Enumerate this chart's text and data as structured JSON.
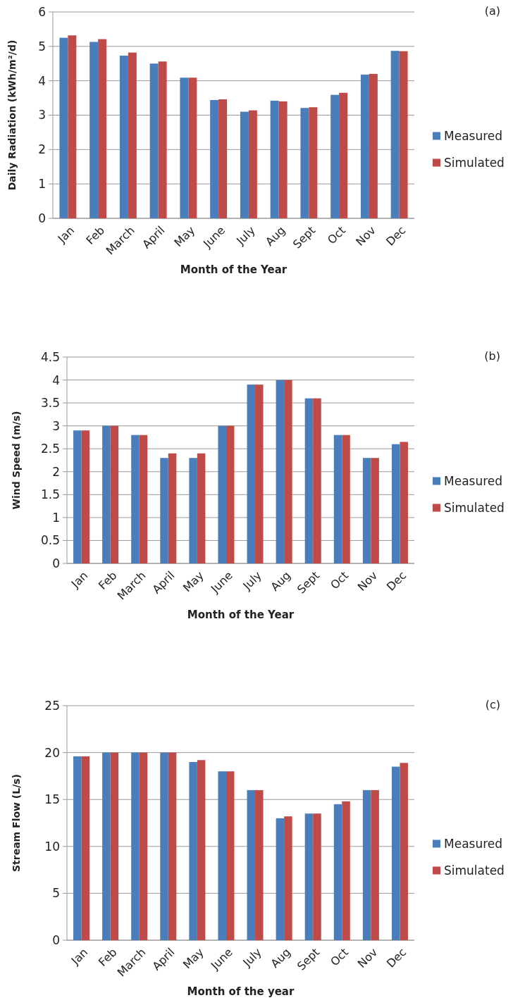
{
  "chart_data": [
    {
      "type": "bar",
      "annotations": [
        "(a)"
      ],
      "xlabel": "Month of the Year",
      "ylabel": "Daily Radiation (kWh/m²/d)",
      "categories": [
        "Jan",
        "Feb",
        "March",
        "April",
        "May",
        "June",
        "July",
        "Aug",
        "Sept",
        "Oct",
        "Nov",
        "Dec"
      ],
      "series": [
        {
          "name": "Measured",
          "color": "#4a7ebb",
          "values": [
            5.25,
            5.13,
            4.73,
            4.5,
            4.09,
            3.44,
            3.1,
            3.42,
            3.21,
            3.59,
            4.18,
            4.87
          ]
        },
        {
          "name": "Simulated",
          "color": "#be4b48",
          "values": [
            5.32,
            5.21,
            4.82,
            4.56,
            4.09,
            3.46,
            3.14,
            3.4,
            3.23,
            3.65,
            4.2,
            4.86
          ]
        }
      ],
      "ylim": [
        0,
        6
      ],
      "yticks": [
        0,
        1,
        2,
        3,
        4,
        5,
        6
      ],
      "grid": "y",
      "legend": "right"
    },
    {
      "type": "bar",
      "annotations": [
        "(b)"
      ],
      "xlabel": "Month of the Year",
      "ylabel": "Wind Speed (m/s)",
      "categories": [
        "Jan",
        "Feb",
        "March",
        "April",
        "May",
        "June",
        "July",
        "Aug",
        "Sept",
        "Oct",
        "Nov",
        "Dec"
      ],
      "series": [
        {
          "name": "Measured",
          "color": "#4a7ebb",
          "values": [
            2.9,
            3,
            2.8,
            2.3,
            2.3,
            3,
            3.9,
            4,
            3.6,
            2.8,
            2.3,
            2.6
          ]
        },
        {
          "name": "Simulated",
          "color": "#be4b48",
          "values": [
            2.9,
            3,
            2.8,
            2.4,
            2.4,
            3,
            3.9,
            4,
            3.6,
            2.8,
            2.3,
            2.65
          ]
        }
      ],
      "ylim": [
        0,
        4.5
      ],
      "yticks": [
        0,
        0.5,
        1,
        1.5,
        2,
        2.5,
        3,
        3.5,
        4,
        4.5
      ],
      "grid": "y",
      "legend": "right"
    },
    {
      "type": "bar",
      "annotations": [
        "(c)"
      ],
      "xlabel": "Month of the year",
      "ylabel": "Stream Flow (L/s)",
      "categories": [
        "Jan",
        "Feb",
        "March",
        "April",
        "May",
        "June",
        "July",
        "Aug",
        "Sept",
        "Oct",
        "Nov",
        "Dec"
      ],
      "series": [
        {
          "name": "Measured",
          "color": "#4a7ebb",
          "values": [
            19.6,
            20,
            20,
            20,
            19,
            18,
            16,
            13,
            13.5,
            14.5,
            16,
            18.5
          ]
        },
        {
          "name": "Simulated",
          "color": "#be4b48",
          "values": [
            19.6,
            20,
            20,
            20,
            19.2,
            18,
            16,
            13.2,
            13.5,
            14.8,
            16,
            18.9
          ]
        }
      ],
      "ylim": [
        0,
        25
      ],
      "yticks": [
        0,
        5,
        10,
        15,
        20,
        25
      ],
      "grid": "y",
      "legend": "right"
    }
  ]
}
